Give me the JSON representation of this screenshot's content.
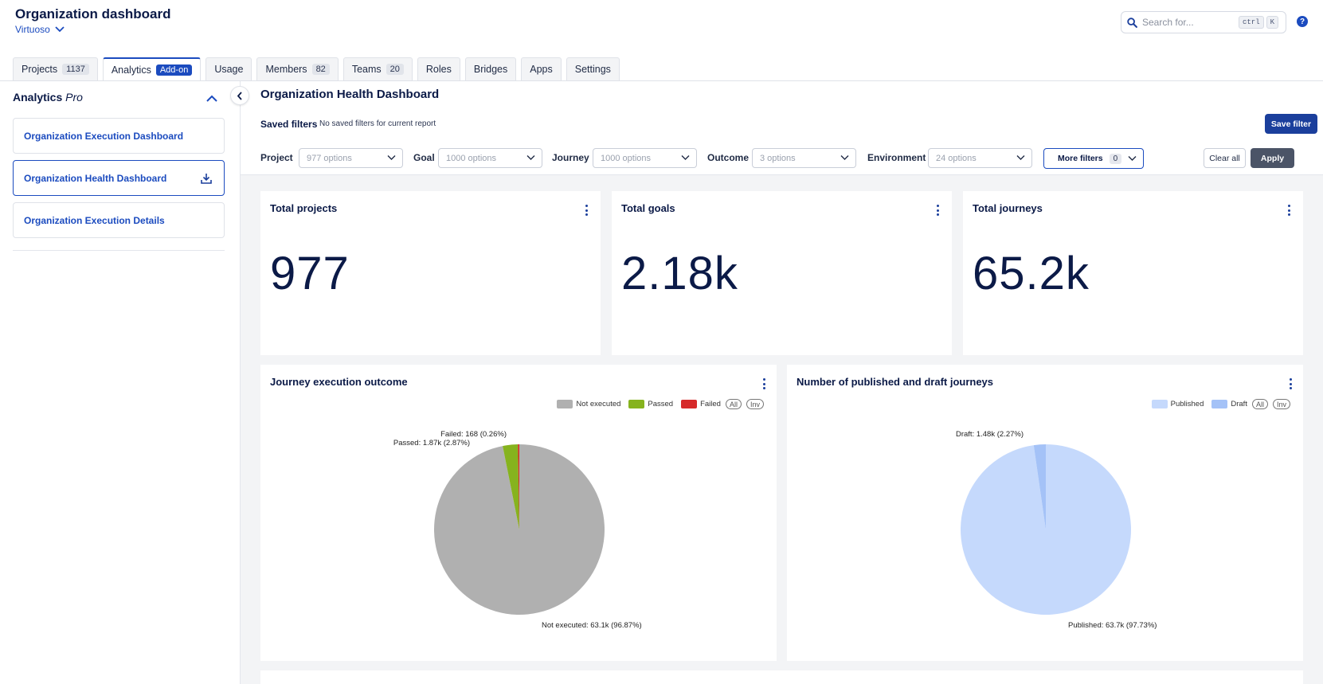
{
  "header": {
    "title": "Organization dashboard",
    "org_name": "Virtuoso",
    "search_placeholder": "Search for...",
    "shortcut_keys": [
      "ctrl",
      "K"
    ],
    "help_label": "?"
  },
  "tabs": [
    {
      "label": "Projects",
      "count": "1137"
    },
    {
      "label": "Analytics",
      "badge": "Add-on",
      "active": true
    },
    {
      "label": "Usage"
    },
    {
      "label": "Members",
      "count": "82"
    },
    {
      "label": "Teams",
      "count": "20"
    },
    {
      "label": "Roles"
    },
    {
      "label": "Bridges"
    },
    {
      "label": "Apps"
    },
    {
      "label": "Settings"
    }
  ],
  "sidebar": {
    "title": "Analytics",
    "title_suffix": "Pro",
    "items": [
      {
        "label": "Organization Execution Dashboard"
      },
      {
        "label": "Organization Health Dashboard",
        "active": true
      },
      {
        "label": "Organization Execution Details"
      }
    ]
  },
  "main": {
    "title": "Organization Health Dashboard",
    "saved_filters_label": "Saved filters",
    "saved_filters_value": "No saved filters for current report",
    "save_filter_label": "Save filter",
    "filters": [
      {
        "label": "Project",
        "placeholder": "977 options"
      },
      {
        "label": "Goal",
        "placeholder": "1000 options"
      },
      {
        "label": "Journey",
        "placeholder": "1000 options"
      },
      {
        "label": "Outcome",
        "placeholder": "3 options"
      },
      {
        "label": "Environment",
        "placeholder": "24 options"
      }
    ],
    "more_filters_label": "More filters",
    "more_filters_count": "0",
    "clear_all_label": "Clear all",
    "apply_label": "Apply"
  },
  "kpis": [
    {
      "title": "Total projects",
      "value": "977"
    },
    {
      "title": "Total goals",
      "value": "2.18k"
    },
    {
      "title": "Total journeys",
      "value": "65.2k"
    }
  ],
  "chart_data": [
    {
      "type": "pie",
      "title": "Journey execution outcome",
      "legend": [
        "Not executed",
        "Passed",
        "Failed"
      ],
      "legend_buttons": [
        "All",
        "Inv"
      ],
      "legend_position": "top-right",
      "slices": [
        {
          "name": "Not executed",
          "value": 63100,
          "percent": 96.87,
          "label": "Not executed: 63.1k (96.87%)",
          "color": "#b0b0b0"
        },
        {
          "name": "Passed",
          "value": 1870,
          "percent": 2.87,
          "label": "Passed: 1.87k (2.87%)",
          "color": "#86b31e"
        },
        {
          "name": "Failed",
          "value": 168,
          "percent": 0.26,
          "label": "Failed: 168 (0.26%)",
          "color": "#d62a2a"
        }
      ]
    },
    {
      "type": "pie",
      "title": "Number of published and draft journeys",
      "legend": [
        "Published",
        "Draft"
      ],
      "legend_buttons": [
        "All",
        "Inv"
      ],
      "legend_position": "top-right",
      "slices": [
        {
          "name": "Published",
          "value": 63700,
          "percent": 97.73,
          "label": "Published: 63.7k (97.73%)",
          "color": "#c5d9fc"
        },
        {
          "name": "Draft",
          "value": 1480,
          "percent": 2.27,
          "label": "Draft: 1.48k (2.27%)",
          "color": "#a4c2f7"
        }
      ]
    }
  ]
}
